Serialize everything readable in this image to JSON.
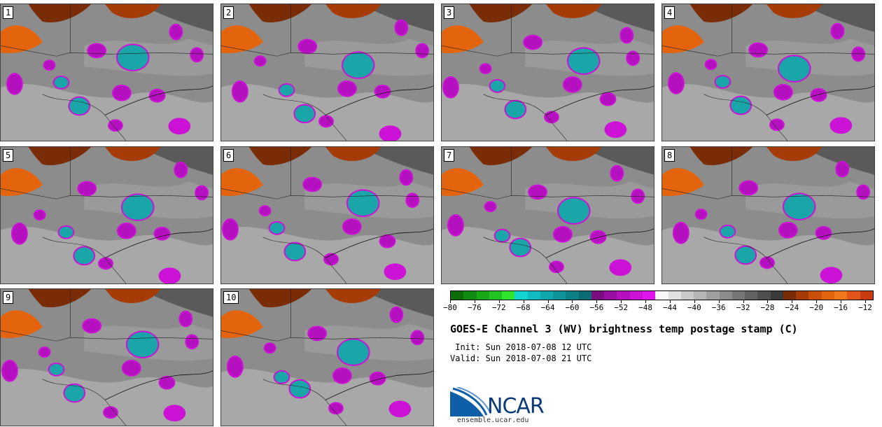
{
  "panels": [
    "1",
    "2",
    "3",
    "4",
    "5",
    "6",
    "7",
    "8",
    "9",
    "10"
  ],
  "colorbar": {
    "colors": [
      "#0b6e0b",
      "#118a11",
      "#17a717",
      "#21c521",
      "#2ee62e",
      "#12d3cf",
      "#10bcbf",
      "#0fa8ac",
      "#0e9499",
      "#0d8086",
      "#0c6c73",
      "#7a0d80",
      "#990ea2",
      "#b510bf",
      "#cc12d6",
      "#e014ec",
      "#f7f7f7",
      "#e0e0e0",
      "#cacaca",
      "#b5b5b5",
      "#a0a0a0",
      "#8c8c8c",
      "#777777",
      "#626262",
      "#4e4e4e",
      "#3a3a3a",
      "#7a2c06",
      "#a53c08",
      "#c9500b",
      "#e3640d",
      "#f0781a",
      "#e2551a",
      "#c83b12"
    ],
    "tick_labels": [
      "−80",
      "−76",
      "−72",
      "−68",
      "−64",
      "−60",
      "−56",
      "−52",
      "−48",
      "−44",
      "−40",
      "−36",
      "−32",
      "−28",
      "−24",
      "−20",
      "−16",
      "−12"
    ]
  },
  "title": "GOES-E Channel 3 (WV) brightness temp postage stamp (C)",
  "init": " Init: Sun 2018-07-08 12 UTC",
  "valid": "Valid: Sun 2018-07-08 21 UTC",
  "logo": {
    "name": "NCAR",
    "url": "ensemble.ucar.edu"
  }
}
